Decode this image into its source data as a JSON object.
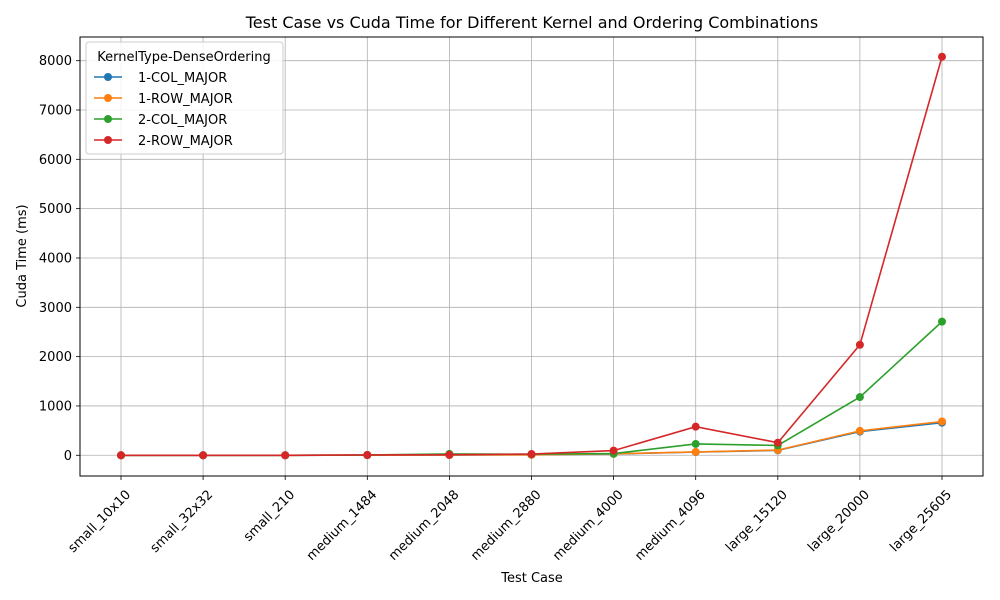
{
  "chart_data": {
    "type": "line",
    "title": "Test Case vs Cuda Time for Different Kernel and Ordering Combinations",
    "xlabel": "Test Case",
    "ylabel": "Cuda Time (ms)",
    "categories": [
      "small_10x10",
      "small_32x32",
      "small_210",
      "medium_1484",
      "medium_2048",
      "medium_2880",
      "medium_4000",
      "medium_4096",
      "large_15120",
      "large_20000",
      "large_25605"
    ],
    "ylim": [
      -420,
      8480
    ],
    "yticks": [
      0,
      1000,
      2000,
      3000,
      4000,
      5000,
      6000,
      7000,
      8000
    ],
    "grid": true,
    "legend": {
      "title": "KernelType-DenseOrdering",
      "placement": "top-left"
    },
    "series": [
      {
        "name": "1-COL_MAJOR",
        "color": "#1f77b4",
        "values": [
          0,
          0,
          0,
          3,
          6,
          9,
          28,
          65,
          100,
          480,
          660
        ]
      },
      {
        "name": "1-ROW_MAJOR",
        "color": "#ff7f0e",
        "values": [
          0,
          0,
          0,
          3,
          6,
          10,
          30,
          68,
          105,
          495,
          685
        ]
      },
      {
        "name": "2-COL_MAJOR",
        "color": "#2ca02c",
        "values": [
          0,
          0,
          0,
          5,
          28,
          22,
          35,
          230,
          200,
          1180,
          2710
        ]
      },
      {
        "name": "2-ROW_MAJOR",
        "color": "#d62728",
        "values": [
          0,
          0,
          0,
          6,
          10,
          25,
          95,
          580,
          255,
          2240,
          8080
        ]
      }
    ]
  }
}
